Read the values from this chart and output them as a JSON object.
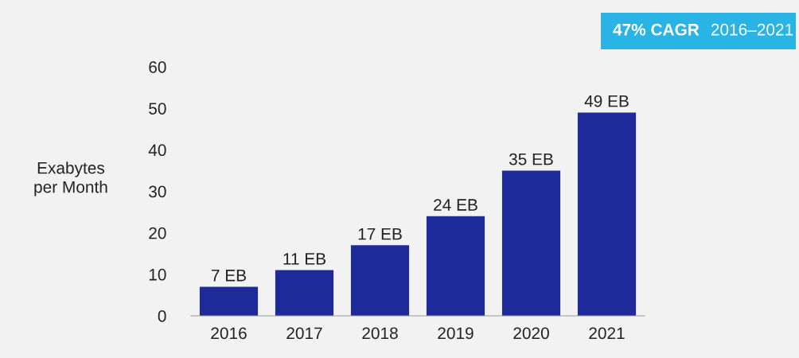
{
  "chart_data": {
    "type": "bar",
    "categories": [
      "2016",
      "2017",
      "2018",
      "2019",
      "2020",
      "2021"
    ],
    "values": [
      7,
      11,
      17,
      24,
      35,
      49
    ],
    "value_labels": [
      "7 EB",
      "11 EB",
      "17 EB",
      "24 EB",
      "35 EB",
      "49 EB"
    ],
    "color": "#1f2a9a",
    "ylabel": "Exabytes\nper Month",
    "ylim": [
      0,
      60
    ],
    "yticks": [
      0,
      10,
      20,
      30,
      40,
      50,
      60
    ],
    "grid": false,
    "annotations": [
      "47% CAGR",
      "2016–2021"
    ]
  }
}
